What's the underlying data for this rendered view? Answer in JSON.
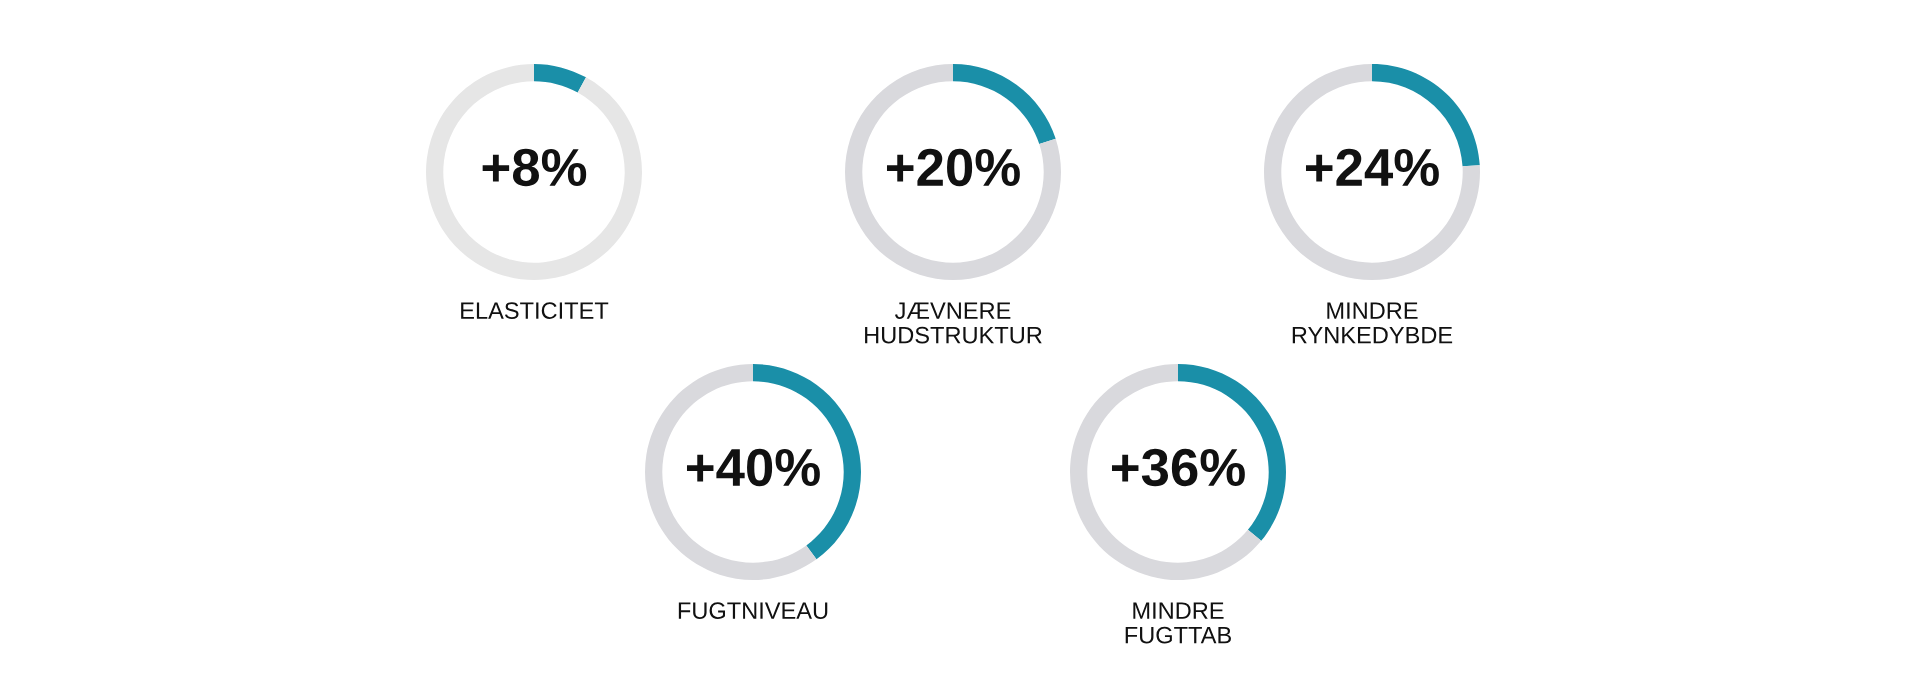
{
  "chart_data": [
    {
      "type": "donut",
      "title": "ELASTICITET",
      "categories": [
        null,
        null
      ],
      "values": [
        8,
        92
      ],
      "colors": [
        "#1a8fa8",
        "#e6e6e6"
      ],
      "annotations": [
        "+8%"
      ]
    },
    {
      "type": "donut",
      "title": "JÆVNERE\nHUDSTRUKTUR",
      "categories": [
        null,
        null
      ],
      "values": [
        20,
        80
      ],
      "colors": [
        "#1a8fa8",
        "#d9d9dd"
      ],
      "annotations": [
        "+20%"
      ]
    },
    {
      "type": "donut",
      "title": "MINDRE\nRYNKEDYBDE",
      "categories": [
        null,
        null
      ],
      "values": [
        24,
        76
      ],
      "colors": [
        "#1a8fa8",
        "#d9d9dd"
      ],
      "annotations": [
        "+24%"
      ]
    },
    {
      "type": "donut",
      "title": "FUGTNIVEAU",
      "categories": [
        null,
        null
      ],
      "values": [
        40,
        60
      ],
      "colors": [
        "#1a8fa8",
        "#d9d9dd"
      ],
      "annotations": [
        "+40%"
      ]
    },
    {
      "type": "donut",
      "title": "MINDRE\nFUGTTAB",
      "categories": [
        null,
        null
      ],
      "values": [
        36,
        64
      ],
      "colors": [
        "#1a8fa8",
        "#d9d9dd"
      ],
      "annotations": [
        "+36%"
      ]
    }
  ]
}
